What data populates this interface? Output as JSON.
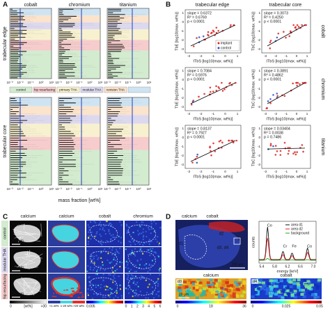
{
  "A": {
    "label": "A",
    "columns": [
      "cobalt",
      "chromium",
      "titanium"
    ],
    "rows": [
      "trabecular edge",
      "trabecular core"
    ],
    "legend": [
      "control",
      "hip resurfacing",
      "primary THA",
      "modular THA",
      "revision THA"
    ],
    "xticks": [
      "10⁻³",
      "10⁻²",
      "10⁻¹",
      "10⁰",
      "10¹"
    ],
    "xlabel": "mass fraction [wt%]"
  },
  "B": {
    "label": "B",
    "titles": [
      "trabecular edge",
      "trabecular core"
    ],
    "rows": [
      "cobalt",
      "chromium",
      "titanium"
    ],
    "xlabel": "ITbS [log10(max. wt%)]",
    "ylabels": [
      "TbE [log10(max. wt%)]",
      "TbC [log10(max. wt%)]"
    ],
    "xticks": [
      "-3",
      "-2",
      "-1",
      "0",
      "1"
    ],
    "yticks": [
      "1",
      "0",
      "-1",
      "-2",
      "-3"
    ],
    "legend": [
      "implant",
      "control"
    ],
    "stats": [
      {
        "slope": "slope = 0.6372",
        "r2": "R² = 0.6769",
        "p": "p < 0.0001"
      },
      {
        "slope": "slope = 0.3073",
        "r2": "R² = 0.4250",
        "p": "p < 0.0001"
      },
      {
        "slope": "slope = 0.7084",
        "r2": "R² = 0.5976",
        "p": "p < 0.0001"
      },
      {
        "slope": "slope = 0.3891",
        "r2": "R² = 0.4862",
        "p": "p < 0.0001"
      },
      {
        "slope": "slope = 0.8137",
        "r2": "R² = 0.7927",
        "p": "p < 0.0001"
      },
      {
        "slope": "slope = 0.03404",
        "r2": "R² = 0.0038",
        "p": "p = 0.7486"
      }
    ]
  },
  "C": {
    "label": "C",
    "columns": [
      "calcium",
      "calcium",
      "cobalt",
      "chromium"
    ],
    "rows": [
      "control",
      "modular THA",
      "hip resurfacing"
    ],
    "scalebars": [
      "100 µm",
      "200 µm",
      "200 µm"
    ],
    "colorbar1": [
      "0",
      "[wt%]",
      ">30"
    ],
    "colorbar2": [
      "<1 wt%",
      "1-20 wt%",
      ">20 wt%"
    ],
    "colorbar3": [
      "0.005"
    ],
    "colorbar4": [
      "0",
      "1",
      "2",
      "3",
      "4",
      "5",
      "6"
    ]
  },
  "D": {
    "label": "D",
    "image_labels": [
      "calcium",
      "cobalt"
    ],
    "areas": [
      "d1",
      "d2",
      "d3, d4"
    ],
    "scalebar": "200 µm",
    "spectrum": {
      "ylabel": "counts",
      "xlabel": "energy [keV]",
      "xticks": [
        "5.4",
        "5.8",
        "6.2",
        "6.6",
        "7.0"
      ],
      "legend": [
        "area d1",
        "area d2",
        "background"
      ],
      "peaks": [
        "Co",
        "Cr",
        "Fe",
        "Co"
      ]
    },
    "maps": [
      {
        "title": "calcium",
        "tag": "d3",
        "scalebar": "20 µm",
        "colorbar": [
          "0",
          "18",
          "36"
        ]
      },
      {
        "title": "cobalt",
        "tag": "d4",
        "colorbar": [
          "0",
          "0.025",
          "0.05"
        ]
      }
    ]
  }
}
